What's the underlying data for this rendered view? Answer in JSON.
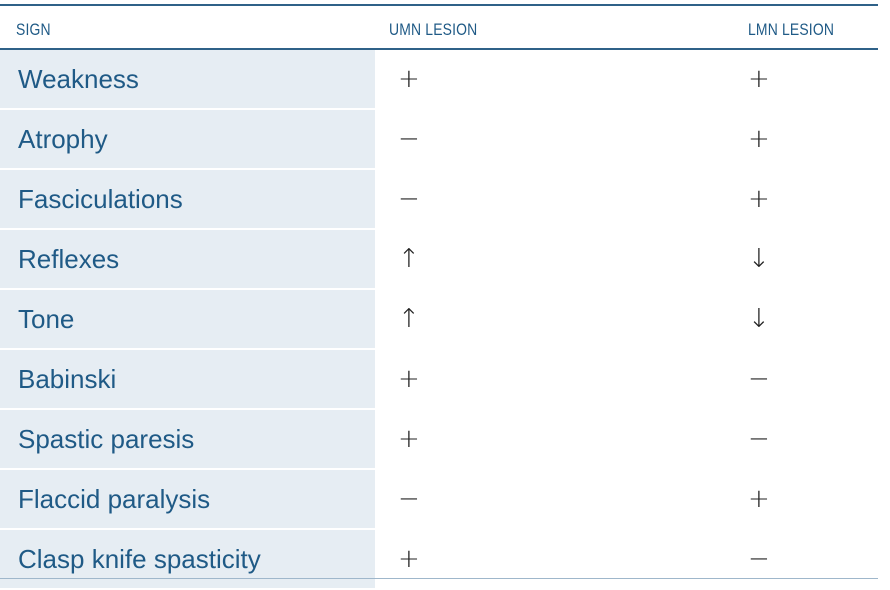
{
  "table": {
    "headers": {
      "sign": "SIGN",
      "umn": "UMN LESION",
      "lmn": "LMN LESION"
    },
    "rows": [
      {
        "sign": "Weakness",
        "umn": "+",
        "lmn": "+"
      },
      {
        "sign": "Atrophy",
        "umn": "−",
        "lmn": "+"
      },
      {
        "sign": "Fasciculations",
        "umn": "−",
        "lmn": "+"
      },
      {
        "sign": "Reflexes",
        "umn": "↑",
        "lmn": "↓"
      },
      {
        "sign": "Tone",
        "umn": "↑",
        "lmn": "↓"
      },
      {
        "sign": "Babinski",
        "umn": "+",
        "lmn": "−"
      },
      {
        "sign": "Spastic paresis",
        "umn": "+",
        "lmn": "−"
      },
      {
        "sign": "Flaccid paralysis",
        "umn": "−",
        "lmn": "+"
      },
      {
        "sign": "Clasp knife spasticity",
        "umn": "+",
        "lmn": "−"
      }
    ]
  },
  "colors": {
    "header_text": "#1f5a86",
    "rule": "#2f6188",
    "sign_cell_background": "#e6edf3",
    "sign_text": "#1f5a86",
    "value_text": "#222222"
  }
}
